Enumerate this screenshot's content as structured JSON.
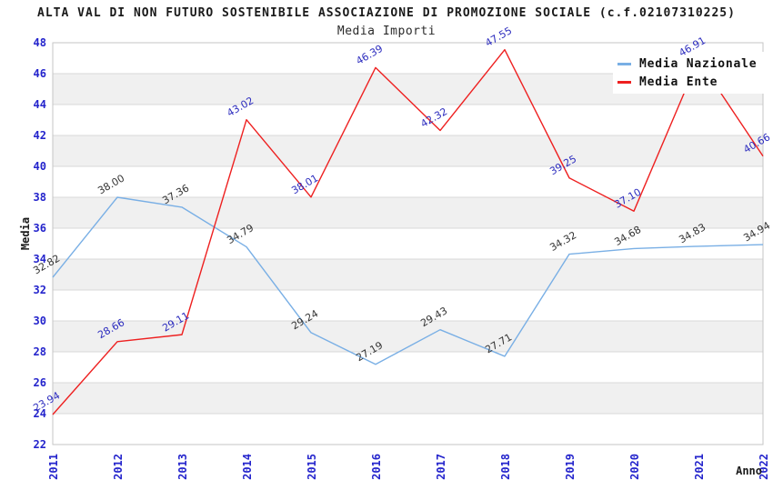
{
  "title": "ALTA VAL DI NON FUTURO SOSTENIBILE ASSOCIAZIONE DI PROMOZIONE SOCIALE (c.f.02107310225)",
  "chart_data": {
    "type": "line",
    "title": "Media Importi",
    "xlabel": "Anno",
    "ylabel": "Media",
    "x": [
      2011,
      2012,
      2013,
      2014,
      2015,
      2016,
      2017,
      2018,
      2019,
      2020,
      2021,
      2022
    ],
    "series": [
      {
        "name": "Media Nazionale",
        "color": "#79AFE5",
        "label_color": "#333333",
        "values": [
          32.82,
          38.0,
          37.36,
          34.79,
          29.24,
          27.19,
          29.43,
          27.71,
          34.32,
          34.68,
          34.83,
          34.94
        ]
      },
      {
        "name": "Media Ente",
        "color": "#EE2020",
        "label_color": "#2B2BBE",
        "values": [
          23.94,
          28.66,
          29.11,
          43.02,
          38.01,
          46.39,
          42.32,
          47.55,
          39.25,
          37.1,
          46.91,
          40.66
        ]
      }
    ],
    "ylim": [
      22,
      48
    ],
    "ytick_step": 2,
    "grid": true,
    "legend_position": "top-right",
    "colors": {
      "tick_label": "#2424CC",
      "band": "#F0F0F0",
      "gridline": "#D8D8D8",
      "frame": "#C6C6C6"
    }
  }
}
